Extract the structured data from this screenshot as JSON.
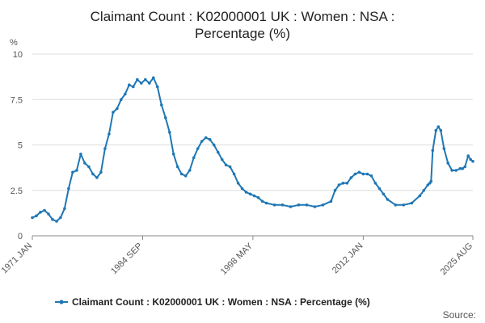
{
  "chart_data": {
    "type": "line",
    "title": "Claimant Count : K02000001 UK : Women : NSA : Percentage (%)",
    "title_lines": [
      "Claimant Count : K02000001 UK : Women : NSA :",
      "Percentage (%)"
    ],
    "ylabel": "%",
    "xlabel": "",
    "ylim": [
      0,
      10
    ],
    "yticks": [
      0,
      2.5,
      5,
      7.5,
      10
    ],
    "ytick_labels": [
      "0",
      "2.5",
      "5",
      "7.5",
      "10"
    ],
    "xlim": [
      1971.0,
      2025.58
    ],
    "xticks": [
      1971.0,
      1984.67,
      1998.33,
      2012.0,
      2025.58
    ],
    "xtick_labels": [
      "1971 JAN",
      "1984 SEP",
      "1998 MAY",
      "2012 JAN",
      "2025 AUG"
    ],
    "grid": true,
    "legend_position": "bottom",
    "source_label": "Source:",
    "colors": {
      "series": "#1f77b4",
      "grid": "#dddddd",
      "axis": "#888888"
    },
    "series": [
      {
        "name": "Claimant Count : K02000001 UK : Women : NSA : Percentage (%)",
        "x": [
          1971.0,
          1971.5,
          1972.0,
          1972.5,
          1973.0,
          1973.5,
          1974.0,
          1974.5,
          1975.0,
          1975.5,
          1976.0,
          1976.5,
          1977.0,
          1977.5,
          1978.0,
          1978.5,
          1979.0,
          1979.5,
          1980.0,
          1980.5,
          1981.0,
          1981.5,
          1982.0,
          1982.5,
          1983.0,
          1983.5,
          1984.0,
          1984.5,
          1985.0,
          1985.5,
          1986.0,
          1986.5,
          1987.0,
          1987.5,
          1988.0,
          1988.5,
          1989.0,
          1989.5,
          1990.0,
          1990.5,
          1991.0,
          1991.5,
          1992.0,
          1992.5,
          1993.0,
          1993.5,
          1994.0,
          1994.5,
          1995.0,
          1995.5,
          1996.0,
          1996.5,
          1997.0,
          1997.5,
          1998.0,
          1998.5,
          1999.0,
          1999.5,
          2000.0,
          2001.0,
          2002.0,
          2003.0,
          2004.0,
          2005.0,
          2006.0,
          2007.0,
          2008.0,
          2008.5,
          2009.0,
          2009.5,
          2010.0,
          2010.5,
          2011.0,
          2011.5,
          2012.0,
          2012.5,
          2013.0,
          2013.5,
          2014.0,
          2014.5,
          2015.0,
          2016.0,
          2017.0,
          2018.0,
          2019.0,
          2019.5,
          2020.0,
          2020.25,
          2020.4,
          2020.6,
          2021.0,
          2021.3,
          2021.6,
          2022.0,
          2022.5,
          2023.0,
          2023.5,
          2024.0,
          2024.3,
          2024.6,
          2025.0,
          2025.3,
          2025.58
        ],
        "y": [
          1.0,
          1.1,
          1.3,
          1.4,
          1.2,
          0.9,
          0.8,
          1.0,
          1.5,
          2.6,
          3.5,
          3.6,
          4.5,
          4.0,
          3.8,
          3.4,
          3.2,
          3.5,
          4.8,
          5.6,
          6.8,
          7.0,
          7.5,
          7.8,
          8.3,
          8.2,
          8.6,
          8.4,
          8.6,
          8.4,
          8.7,
          8.2,
          7.2,
          6.5,
          5.7,
          4.5,
          3.8,
          3.4,
          3.3,
          3.6,
          4.3,
          4.8,
          5.2,
          5.4,
          5.3,
          5.0,
          4.6,
          4.2,
          3.9,
          3.8,
          3.4,
          2.9,
          2.6,
          2.4,
          2.3,
          2.2,
          2.1,
          1.9,
          1.8,
          1.7,
          1.7,
          1.6,
          1.7,
          1.7,
          1.6,
          1.7,
          1.9,
          2.5,
          2.8,
          2.9,
          2.9,
          3.2,
          3.4,
          3.5,
          3.4,
          3.4,
          3.3,
          2.9,
          2.6,
          2.3,
          2.0,
          1.7,
          1.7,
          1.8,
          2.2,
          2.5,
          2.8,
          2.9,
          3.0,
          4.7,
          5.8,
          6.0,
          5.8,
          4.8,
          4.0,
          3.6,
          3.6,
          3.7,
          3.7,
          3.8,
          4.4,
          4.2,
          4.1
        ]
      }
    ]
  }
}
